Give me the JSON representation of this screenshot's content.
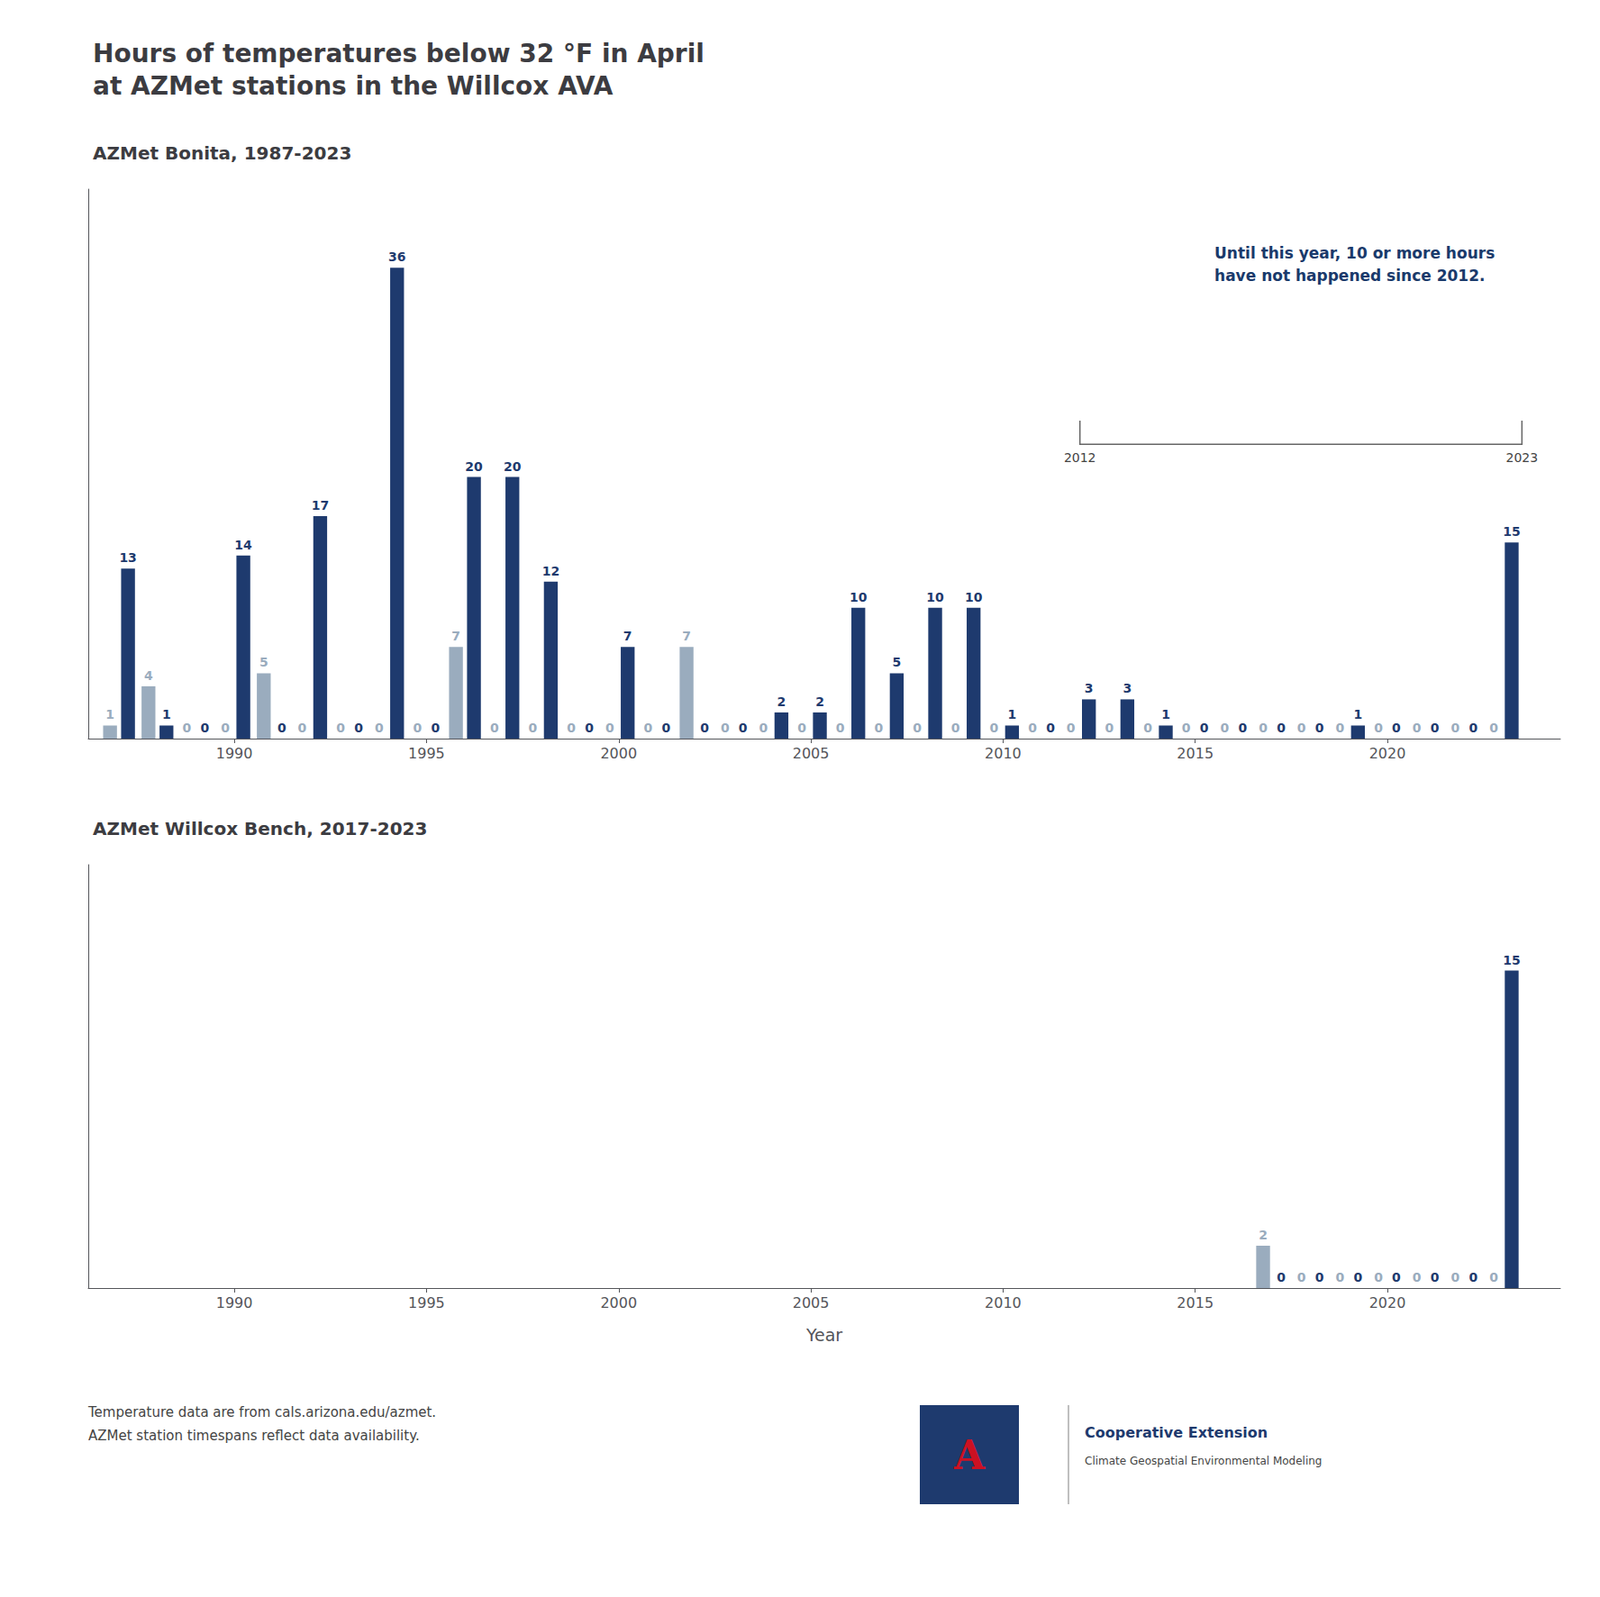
{
  "chart_data": [
    {
      "type": "bar",
      "title": "Hours of temperatures below 32 °F in April\nat AZMet stations in the Willcox AVA",
      "subtitle": "AZMet Bonita, 1987-2023",
      "x": [
        1987,
        1988,
        1989,
        1990,
        1991,
        1992,
        1993,
        1994,
        1995,
        1996,
        1997,
        1998,
        1999,
        2000,
        2001,
        2002,
        2003,
        2004,
        2005,
        2006,
        2007,
        2008,
        2009,
        2010,
        2011,
        2012,
        2013,
        2014,
        2015,
        2016,
        2017,
        2018,
        2019,
        2020,
        2021,
        2022,
        2023
      ],
      "series": [
        {
          "color": "#9aacbe",
          "values": [
            1,
            4,
            0,
            0,
            5,
            0,
            0,
            0,
            0,
            7,
            0,
            0,
            0,
            0,
            0,
            7,
            0,
            0,
            0,
            0,
            0,
            0,
            0,
            0,
            0,
            0,
            0,
            0,
            0,
            0,
            0,
            0,
            0,
            0,
            0,
            0,
            0
          ]
        },
        {
          "color": "#1e3a6e",
          "values": [
            13,
            1,
            0,
            14,
            0,
            17,
            0,
            36,
            0,
            20,
            20,
            12,
            0,
            7,
            0,
            0,
            0,
            2,
            2,
            10,
            5,
            10,
            10,
            1,
            0,
            3,
            3,
            1,
            0,
            0,
            0,
            0,
            1,
            0,
            0,
            0,
            15
          ]
        }
      ],
      "xlim": [
        1986.2,
        2024.5
      ],
      "xticks": [
        1990,
        1995,
        2000,
        2005,
        2010,
        2015,
        2020
      ],
      "ylim": [
        0,
        42
      ],
      "data_labels": true,
      "tick_labels": "x",
      "grid": false,
      "annotations": [
        "Until this year, 10 or more hours\nhave not happened since 2012.",
        "2012",
        "2023"
      ]
    },
    {
      "type": "bar",
      "subtitle": "AZMet Willcox Bench, 2017-2023",
      "xlabel": "Year",
      "x": [
        2017,
        2018,
        2019,
        2020,
        2021,
        2022,
        2023
      ],
      "series": [
        {
          "color": "#9aacbe",
          "values": [
            2,
            0,
            0,
            0,
            0,
            0,
            0
          ]
        },
        {
          "color": "#1e3a6e",
          "values": [
            0,
            0,
            0,
            0,
            0,
            0,
            15
          ]
        }
      ],
      "xlim": [
        1986.2,
        2024.5
      ],
      "xticks": [
        1990,
        1995,
        2000,
        2005,
        2010,
        2015,
        2020
      ],
      "ylim": [
        0,
        20
      ],
      "data_labels": true,
      "tick_labels": "x",
      "grid": false,
      "annotations": [
        "Temperature data are from cals.arizona.edu/azmet.",
        "AZMet station timespans reflect data availability.",
        "A",
        "Cooperative Extension",
        "Climate Geospatial Environmental Modeling"
      ]
    }
  ]
}
